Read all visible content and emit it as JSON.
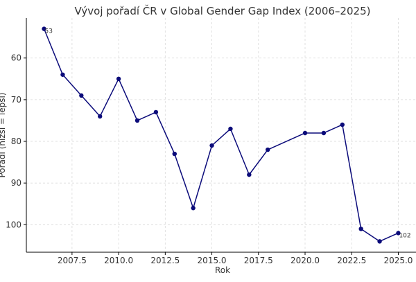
{
  "chart_data": {
    "type": "line",
    "title": "Vývoj pořadí ČR v Global Gender Gap Index (2006–2025)",
    "xlabel": "Rok",
    "ylabel": "Pořadí (nižší = lepší)",
    "x": [
      2006,
      2007,
      2008,
      2009,
      2010,
      2011,
      2012,
      2013,
      2014,
      2015,
      2016,
      2017,
      2018,
      2020,
      2021,
      2022,
      2023,
      2024,
      2025
    ],
    "values": [
      53,
      64,
      69,
      74,
      65,
      75,
      73,
      83,
      96,
      81,
      77,
      88,
      82,
      78,
      78,
      76,
      101,
      104,
      102
    ],
    "xlim": [
      2005.05,
      2025.95
    ],
    "ylim": [
      106.6,
      50.4
    ],
    "y_inverted": true,
    "x_ticks": [
      2007.5,
      2010.0,
      2012.5,
      2015.0,
      2017.5,
      2020.0,
      2022.5,
      2025.0
    ],
    "x_tick_labels": [
      "2007.5",
      "2010.0",
      "2012.5",
      "2015.0",
      "2017.5",
      "2020.0",
      "2022.5",
      "2025.0"
    ],
    "y_ticks": [
      60,
      70,
      80,
      90,
      100
    ],
    "y_tick_labels": [
      "60",
      "70",
      "80",
      "90",
      "100"
    ],
    "annotations": [
      {
        "x": 2006,
        "y": 53,
        "text": "53"
      },
      {
        "x": 2025,
        "y": 102,
        "text": "102"
      }
    ],
    "grid": true,
    "line_color": "#0b0b7a",
    "marker_color": "#0b0b7a",
    "grid_color": "#d9d9d9",
    "axis_color": "#000000",
    "text_color": "#333333"
  }
}
